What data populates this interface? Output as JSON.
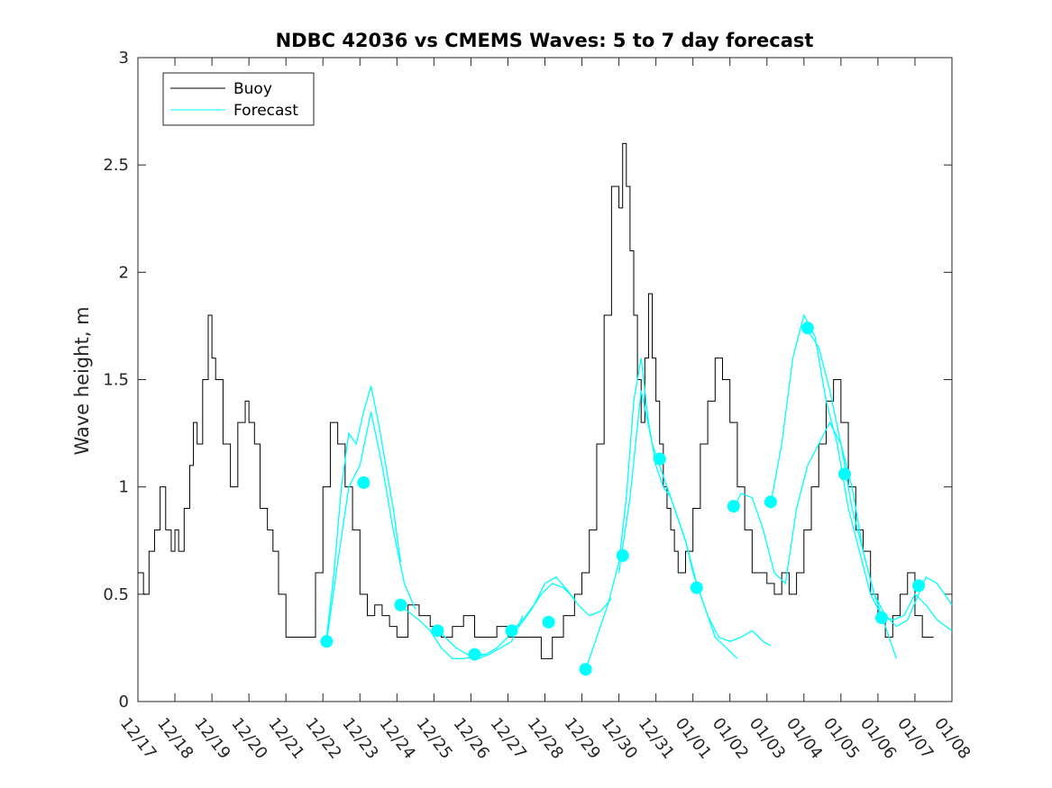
{
  "chart_data": {
    "type": "line",
    "title": "NDBC 42036 vs CMEMS Waves: 5 to 7 day forecast",
    "xlabel": "",
    "ylabel": "Wave height, m",
    "xlim": [
      0,
      22
    ],
    "ylim": [
      0,
      3
    ],
    "x_ticks": [
      0,
      1,
      2,
      3,
      4,
      5,
      6,
      7,
      8,
      9,
      10,
      11,
      12,
      13,
      14,
      15,
      16,
      17,
      18,
      19,
      20,
      21,
      22
    ],
    "x_tick_labels": [
      "12/17",
      "12/18",
      "12/19",
      "12/20",
      "12/21",
      "12/22",
      "12/23",
      "12/24",
      "12/25",
      "12/26",
      "12/27",
      "12/28",
      "12/29",
      "12/30",
      "12/31",
      "01/01",
      "01/02",
      "01/03",
      "01/04",
      "01/05",
      "01/06",
      "01/07",
      "01/08"
    ],
    "y_ticks": [
      0,
      0.5,
      1,
      1.5,
      2,
      2.5,
      3
    ],
    "y_tick_labels": [
      "0",
      "0.5",
      "1",
      "1.5",
      "2",
      "2.5",
      "3"
    ],
    "legend": {
      "position": "top-left",
      "entries": [
        "Buoy",
        "Forecast"
      ]
    },
    "colors": {
      "buoy": "#000000",
      "forecast": "#00ffff",
      "axes": "#262626"
    },
    "buoy": {
      "name": "Buoy",
      "x": [
        0,
        0.15,
        0.3,
        0.45,
        0.6,
        0.75,
        0.9,
        1.0,
        1.1,
        1.25,
        1.4,
        1.5,
        1.6,
        1.75,
        1.9,
        2.0,
        2.1,
        2.3,
        2.5,
        2.7,
        2.9,
        3.0,
        3.15,
        3.3,
        3.5,
        3.65,
        3.8,
        4.0,
        4.2,
        4.4,
        4.6,
        4.8,
        5.0,
        5.2,
        5.4,
        5.6,
        5.8,
        6.0,
        6.2,
        6.4,
        6.6,
        6.8,
        7.0,
        7.3,
        7.6,
        7.9,
        8.2,
        8.5,
        8.8,
        9.1,
        9.4,
        9.7,
        10.0,
        10.3,
        10.6,
        10.9,
        11.2,
        11.5,
        11.8,
        12.0,
        12.2,
        12.4,
        12.6,
        12.8,
        13.0,
        13.1,
        13.2,
        13.3,
        13.4,
        13.5,
        13.6,
        13.7,
        13.8,
        13.9,
        14.0,
        14.1,
        14.2,
        14.3,
        14.4,
        14.5,
        14.6,
        14.8,
        15.0,
        15.2,
        15.4,
        15.6,
        15.8,
        16.0,
        16.2,
        16.4,
        16.6,
        16.8,
        17.0,
        17.2,
        17.4,
        17.6,
        17.8,
        18.0,
        18.2,
        18.4,
        18.6,
        18.8,
        19.0,
        19.2,
        19.4,
        19.6,
        19.8,
        20.0,
        20.2,
        20.4,
        20.6,
        20.8,
        21.0,
        21.2,
        21.5
      ],
      "y": [
        0.6,
        0.5,
        0.7,
        0.8,
        1.0,
        0.8,
        0.7,
        0.8,
        0.7,
        0.9,
        1.1,
        1.3,
        1.2,
        1.5,
        1.8,
        1.6,
        1.5,
        1.2,
        1.0,
        1.3,
        1.4,
        1.3,
        1.2,
        0.9,
        0.8,
        0.7,
        0.5,
        0.3,
        0.3,
        0.3,
        0.3,
        0.6,
        1.0,
        1.3,
        1.2,
        1.0,
        0.8,
        0.5,
        0.4,
        0.45,
        0.4,
        0.35,
        0.3,
        0.45,
        0.4,
        0.35,
        0.3,
        0.35,
        0.4,
        0.3,
        0.3,
        0.35,
        0.3,
        0.3,
        0.3,
        0.2,
        0.3,
        0.4,
        0.5,
        0.6,
        0.8,
        1.2,
        1.8,
        2.4,
        2.3,
        2.6,
        2.4,
        2.1,
        1.8,
        1.5,
        1.3,
        1.6,
        1.9,
        1.6,
        1.4,
        1.2,
        1.0,
        0.9,
        0.8,
        0.7,
        0.6,
        0.7,
        0.9,
        1.2,
        1.4,
        1.6,
        1.5,
        1.3,
        1.0,
        0.8,
        0.6,
        0.6,
        0.55,
        0.5,
        0.6,
        0.5,
        0.6,
        0.8,
        1.0,
        1.2,
        1.4,
        1.5,
        1.3,
        1.0,
        0.8,
        0.7,
        0.5,
        0.4,
        0.3,
        0.4,
        0.5,
        0.6,
        0.4,
        0.3,
        0.3
      ]
    },
    "forecast_runs": [
      {
        "x": [
          5.1,
          5.3,
          5.5,
          5.7,
          5.9,
          6.1,
          6.3,
          6.5,
          6.7,
          6.9,
          7.1
        ],
        "y": [
          0.3,
          0.6,
          1.0,
          1.25,
          1.2,
          1.35,
          1.47,
          1.3,
          1.1,
          0.9,
          0.65
        ]
      },
      {
        "x": [
          5.1,
          5.4,
          5.7,
          6.0,
          6.3,
          6.6,
          6.9,
          7.2,
          7.5
        ],
        "y": [
          0.28,
          0.65,
          1.0,
          1.1,
          1.35,
          1.1,
          0.8,
          0.55,
          0.43
        ]
      },
      {
        "x": [
          7.0,
          7.3,
          7.6,
          7.9,
          8.2,
          8.5,
          8.8,
          9.1,
          9.4
        ],
        "y": [
          0.45,
          0.42,
          0.38,
          0.33,
          0.25,
          0.2,
          0.2,
          0.21,
          0.22
        ]
      },
      {
        "x": [
          8.0,
          8.3,
          8.6,
          8.9,
          9.2,
          9.5,
          9.8,
          10.1,
          10.4
        ],
        "y": [
          0.35,
          0.3,
          0.25,
          0.22,
          0.2,
          0.22,
          0.25,
          0.28,
          0.4
        ]
      },
      {
        "x": [
          9.1,
          9.4,
          9.7,
          10.0,
          10.3,
          10.6,
          10.9,
          11.2,
          11.5,
          11.8
        ],
        "y": [
          0.22,
          0.22,
          0.25,
          0.3,
          0.35,
          0.42,
          0.5,
          0.55,
          0.53,
          0.48
        ]
      },
      {
        "x": [
          10.1,
          10.4,
          10.7,
          11.0,
          11.3,
          11.6,
          11.9,
          12.2,
          12.5,
          12.8
        ],
        "y": [
          0.33,
          0.38,
          0.45,
          0.55,
          0.58,
          0.52,
          0.45,
          0.4,
          0.42,
          0.48
        ]
      },
      {
        "x": [
          12.1,
          12.4,
          12.7,
          13.0,
          13.2,
          13.4,
          13.6,
          13.8,
          14.0,
          14.2,
          14.4,
          14.6,
          14.8,
          15.0,
          15.3,
          15.6,
          15.9,
          16.2
        ],
        "y": [
          0.15,
          0.3,
          0.45,
          0.65,
          0.95,
          1.4,
          1.6,
          1.3,
          1.1,
          1.0,
          0.95,
          0.85,
          0.75,
          0.6,
          0.45,
          0.3,
          0.25,
          0.2
        ]
      },
      {
        "x": [
          13.0,
          13.3,
          13.6,
          13.9,
          14.2,
          14.5,
          14.8,
          15.1,
          15.4,
          15.7,
          16.0,
          16.3,
          16.6,
          16.9,
          17.1
        ],
        "y": [
          0.6,
          0.95,
          1.45,
          1.2,
          1.05,
          0.9,
          0.75,
          0.55,
          0.4,
          0.3,
          0.28,
          0.3,
          0.33,
          0.28,
          0.26
        ]
      },
      {
        "x": [
          16.1,
          16.3,
          16.6,
          16.9,
          17.2,
          17.5,
          17.8,
          18.1,
          18.4,
          18.7,
          19.0,
          19.3,
          19.6,
          19.9,
          20.2,
          20.5
        ],
        "y": [
          0.9,
          0.97,
          0.95,
          0.8,
          0.6,
          0.55,
          0.9,
          1.1,
          1.2,
          1.3,
          1.2,
          1.0,
          0.7,
          0.5,
          0.35,
          0.2
        ]
      },
      {
        "x": [
          17.1,
          17.4,
          17.7,
          18.0,
          18.3,
          18.6,
          18.9,
          19.2,
          19.5,
          19.8,
          20.1,
          20.4,
          20.7,
          21.0,
          21.3,
          21.6,
          22.0
        ],
        "y": [
          0.92,
          1.2,
          1.6,
          1.8,
          1.7,
          1.4,
          1.2,
          0.9,
          0.7,
          0.5,
          0.4,
          0.38,
          0.4,
          0.5,
          0.45,
          0.38,
          0.33
        ]
      },
      {
        "x": [
          18.1,
          18.4,
          18.7,
          19.0,
          19.3,
          19.6,
          19.9,
          20.2,
          20.5,
          20.8,
          21.1,
          21.3,
          21.6,
          22.0
        ],
        "y": [
          1.73,
          1.65,
          1.45,
          1.2,
          0.9,
          0.7,
          0.5,
          0.4,
          0.35,
          0.38,
          0.5,
          0.58,
          0.55,
          0.45
        ]
      }
    ],
    "forecast_markers": [
      {
        "x": 5.1,
        "y": 0.28
      },
      {
        "x": 6.1,
        "y": 1.02
      },
      {
        "x": 7.1,
        "y": 0.45
      },
      {
        "x": 8.1,
        "y": 0.33
      },
      {
        "x": 9.1,
        "y": 0.22
      },
      {
        "x": 10.1,
        "y": 0.33
      },
      {
        "x": 11.1,
        "y": 0.37
      },
      {
        "x": 12.1,
        "y": 0.15
      },
      {
        "x": 13.1,
        "y": 0.68
      },
      {
        "x": 14.1,
        "y": 1.13
      },
      {
        "x": 15.1,
        "y": 0.53
      },
      {
        "x": 16.1,
        "y": 0.91
      },
      {
        "x": 17.1,
        "y": 0.93
      },
      {
        "x": 18.1,
        "y": 1.74
      },
      {
        "x": 19.1,
        "y": 1.06
      },
      {
        "x": 20.1,
        "y": 0.39
      },
      {
        "x": 21.1,
        "y": 0.54
      }
    ]
  }
}
